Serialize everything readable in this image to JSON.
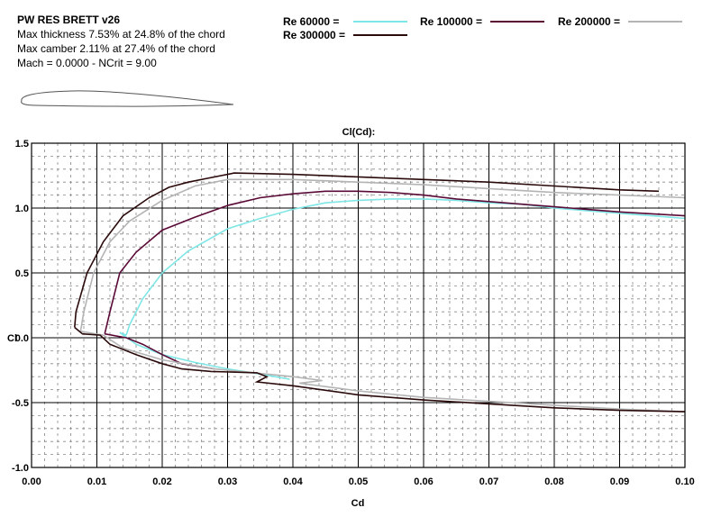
{
  "info": {
    "airfoil_name": "PW RES BRETT v26",
    "thickness": "Max thickness 7.53% at 24.8% of the chord",
    "camber": "Max camber 2.11% at 27.4% of the chord",
    "conditions": "Mach = 0.0000 - NCrit = 9.00"
  },
  "legend": [
    {
      "label": "Re 60000 =",
      "color": "#7fe6e6"
    },
    {
      "label": "Re 100000 =",
      "color": "#5a0a36"
    },
    {
      "label": "Re 200000 =",
      "color": "#b4b4b4"
    },
    {
      "label": "Re 300000 =",
      "color": "#2a0a0a"
    }
  ],
  "chart_data": {
    "type": "line",
    "title": "Cl(Cd):",
    "xlabel": "Cd",
    "ylabel": "Cl",
    "xlim": [
      0.0,
      0.1
    ],
    "ylim": [
      -1.0,
      1.5
    ],
    "x_ticks": [
      "0.00",
      "0.01",
      "0.02",
      "0.03",
      "0.04",
      "0.05",
      "0.06",
      "0.07",
      "0.08",
      "0.09",
      "0.10"
    ],
    "y_ticks": [
      "1.5",
      "1.0",
      "0.5",
      "0.0",
      "-0.5",
      "-1.0"
    ],
    "grid": true,
    "legend_position": "top",
    "series": [
      {
        "name": "Re 60000",
        "color": "#7fe6e6",
        "points": [
          [
            0.0145,
            0.02
          ],
          [
            0.015,
            0.1
          ],
          [
            0.017,
            0.3
          ],
          [
            0.02,
            0.5
          ],
          [
            0.024,
            0.67
          ],
          [
            0.03,
            0.84
          ],
          [
            0.035,
            0.92
          ],
          [
            0.04,
            0.99
          ],
          [
            0.045,
            1.04
          ],
          [
            0.05,
            1.06
          ],
          [
            0.055,
            1.07
          ],
          [
            0.06,
            1.07
          ],
          [
            0.065,
            1.06
          ],
          [
            0.07,
            1.04
          ],
          [
            0.075,
            1.03
          ],
          [
            0.08,
            1.0
          ],
          [
            0.085,
            0.98
          ],
          [
            0.09,
            0.96
          ],
          [
            0.095,
            0.94
          ],
          [
            0.1,
            0.92
          ]
        ],
        "lower": [
          [
            0.0145,
            0.02
          ],
          [
            0.0135,
            0.04
          ],
          [
            0.016,
            -0.05
          ],
          [
            0.02,
            -0.13
          ],
          [
            0.025,
            -0.19
          ],
          [
            0.03,
            -0.24
          ],
          [
            0.035,
            -0.28
          ],
          [
            0.0395,
            -0.32
          ]
        ]
      },
      {
        "name": "Re 100000",
        "color": "#5a0a36",
        "points": [
          [
            0.0112,
            0.03
          ],
          [
            0.012,
            0.2
          ],
          [
            0.0135,
            0.5
          ],
          [
            0.016,
            0.66
          ],
          [
            0.02,
            0.83
          ],
          [
            0.025,
            0.93
          ],
          [
            0.03,
            1.02
          ],
          [
            0.035,
            1.08
          ],
          [
            0.04,
            1.11
          ],
          [
            0.045,
            1.13
          ],
          [
            0.05,
            1.13
          ],
          [
            0.055,
            1.12
          ],
          [
            0.06,
            1.1
          ],
          [
            0.065,
            1.07
          ],
          [
            0.07,
            1.05
          ],
          [
            0.075,
            1.03
          ],
          [
            0.08,
            1.01
          ],
          [
            0.09,
            0.97
          ],
          [
            0.1,
            0.94
          ]
        ],
        "lower": [
          [
            0.0112,
            0.03
          ],
          [
            0.0145,
            0.0
          ],
          [
            0.017,
            -0.05
          ],
          [
            0.02,
            -0.13
          ],
          [
            0.023,
            -0.2
          ],
          [
            0.0255,
            -0.22
          ],
          [
            0.028,
            -0.24
          ]
        ]
      },
      {
        "name": "Re 200000",
        "color": "#b4b4b4",
        "points": [
          [
            0.0075,
            0.05
          ],
          [
            0.008,
            0.2
          ],
          [
            0.0095,
            0.5
          ],
          [
            0.012,
            0.74
          ],
          [
            0.015,
            0.9
          ],
          [
            0.02,
            1.06
          ],
          [
            0.025,
            1.17
          ],
          [
            0.03,
            1.22
          ],
          [
            0.04,
            1.22
          ],
          [
            0.05,
            1.2
          ],
          [
            0.06,
            1.18
          ],
          [
            0.07,
            1.15
          ],
          [
            0.08,
            1.12
          ],
          [
            0.09,
            1.1
          ],
          [
            0.1,
            1.08
          ]
        ],
        "lower": [
          [
            0.0075,
            0.05
          ],
          [
            0.011,
            0.02
          ],
          [
            0.014,
            -0.08
          ],
          [
            0.02,
            -0.17
          ],
          [
            0.028,
            -0.24
          ],
          [
            0.04,
            -0.3
          ],
          [
            0.0445,
            -0.33
          ],
          [
            0.041,
            -0.35
          ],
          [
            0.05,
            -0.41
          ],
          [
            0.06,
            -0.46
          ],
          [
            0.07,
            -0.49
          ],
          [
            0.08,
            -0.52
          ],
          [
            0.09,
            -0.55
          ],
          [
            0.1,
            -0.57
          ]
        ]
      },
      {
        "name": "Re 300000",
        "color": "#2a0a0a",
        "points": [
          [
            0.0066,
            0.08
          ],
          [
            0.0068,
            0.2
          ],
          [
            0.0085,
            0.5
          ],
          [
            0.011,
            0.74
          ],
          [
            0.014,
            0.94
          ],
          [
            0.018,
            1.08
          ],
          [
            0.021,
            1.16
          ],
          [
            0.024,
            1.2
          ],
          [
            0.027,
            1.23
          ],
          [
            0.031,
            1.27
          ],
          [
            0.04,
            1.26
          ],
          [
            0.05,
            1.24
          ],
          [
            0.06,
            1.22
          ],
          [
            0.07,
            1.2
          ],
          [
            0.08,
            1.17
          ],
          [
            0.09,
            1.14
          ],
          [
            0.096,
            1.13
          ]
        ],
        "lower": [
          [
            0.0066,
            0.08
          ],
          [
            0.0078,
            0.03
          ],
          [
            0.0105,
            0.02
          ],
          [
            0.012,
            -0.05
          ],
          [
            0.016,
            -0.13
          ],
          [
            0.02,
            -0.2
          ],
          [
            0.023,
            -0.24
          ],
          [
            0.0275,
            -0.26
          ],
          [
            0.0345,
            -0.27
          ],
          [
            0.036,
            -0.3
          ],
          [
            0.0345,
            -0.34
          ],
          [
            0.04,
            -0.37
          ],
          [
            0.05,
            -0.44
          ],
          [
            0.06,
            -0.48
          ],
          [
            0.07,
            -0.51
          ],
          [
            0.08,
            -0.54
          ],
          [
            0.09,
            -0.56
          ],
          [
            0.1,
            -0.57
          ]
        ]
      }
    ]
  }
}
